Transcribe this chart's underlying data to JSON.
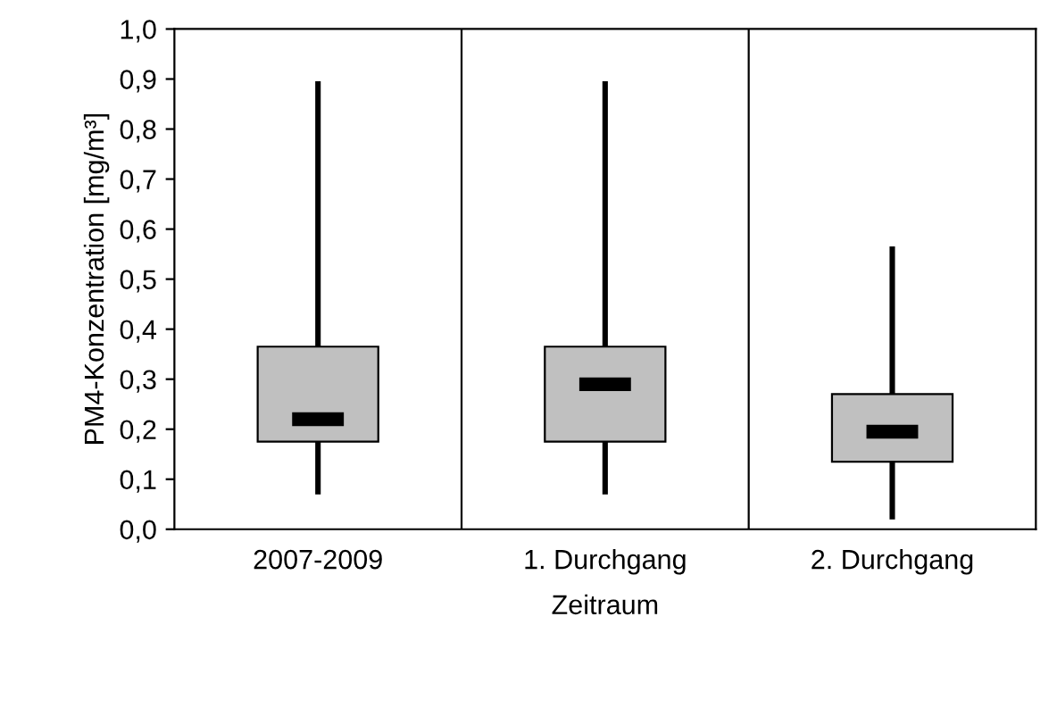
{
  "chart_data": {
    "type": "box",
    "xlabel": "Zeitraum",
    "ylabel": "PM4-Konzentration [mg/m³]",
    "categories": [
      "2007-2009",
      "1. Durchgang",
      "2. Durchgang"
    ],
    "boxes": [
      {
        "low": 0.075,
        "q1": 0.175,
        "median": 0.22,
        "q3": 0.365,
        "high": 0.89
      },
      {
        "low": 0.075,
        "q1": 0.175,
        "median": 0.29,
        "q3": 0.365,
        "high": 0.89
      },
      {
        "low": 0.025,
        "q1": 0.135,
        "median": 0.195,
        "q3": 0.27,
        "high": 0.56
      }
    ],
    "color": "#c0c0c0",
    "ylim": [
      0,
      1
    ],
    "yticks": [
      {
        "value": 0,
        "label": "0,0"
      },
      {
        "value": 0.1,
        "label": "0,1"
      },
      {
        "value": 0.2,
        "label": "0,2"
      },
      {
        "value": 0.3,
        "label": "0,3"
      },
      {
        "value": 0.4,
        "label": "0,4"
      },
      {
        "value": 0.5,
        "label": "0,5"
      },
      {
        "value": 0.6,
        "label": "0,6"
      },
      {
        "value": 0.7,
        "label": "0,7"
      },
      {
        "value": 0.8,
        "label": "0,8"
      },
      {
        "value": 0.9,
        "label": "0,9"
      },
      {
        "value": 1,
        "label": "1,0"
      }
    ],
    "grid": "x"
  }
}
